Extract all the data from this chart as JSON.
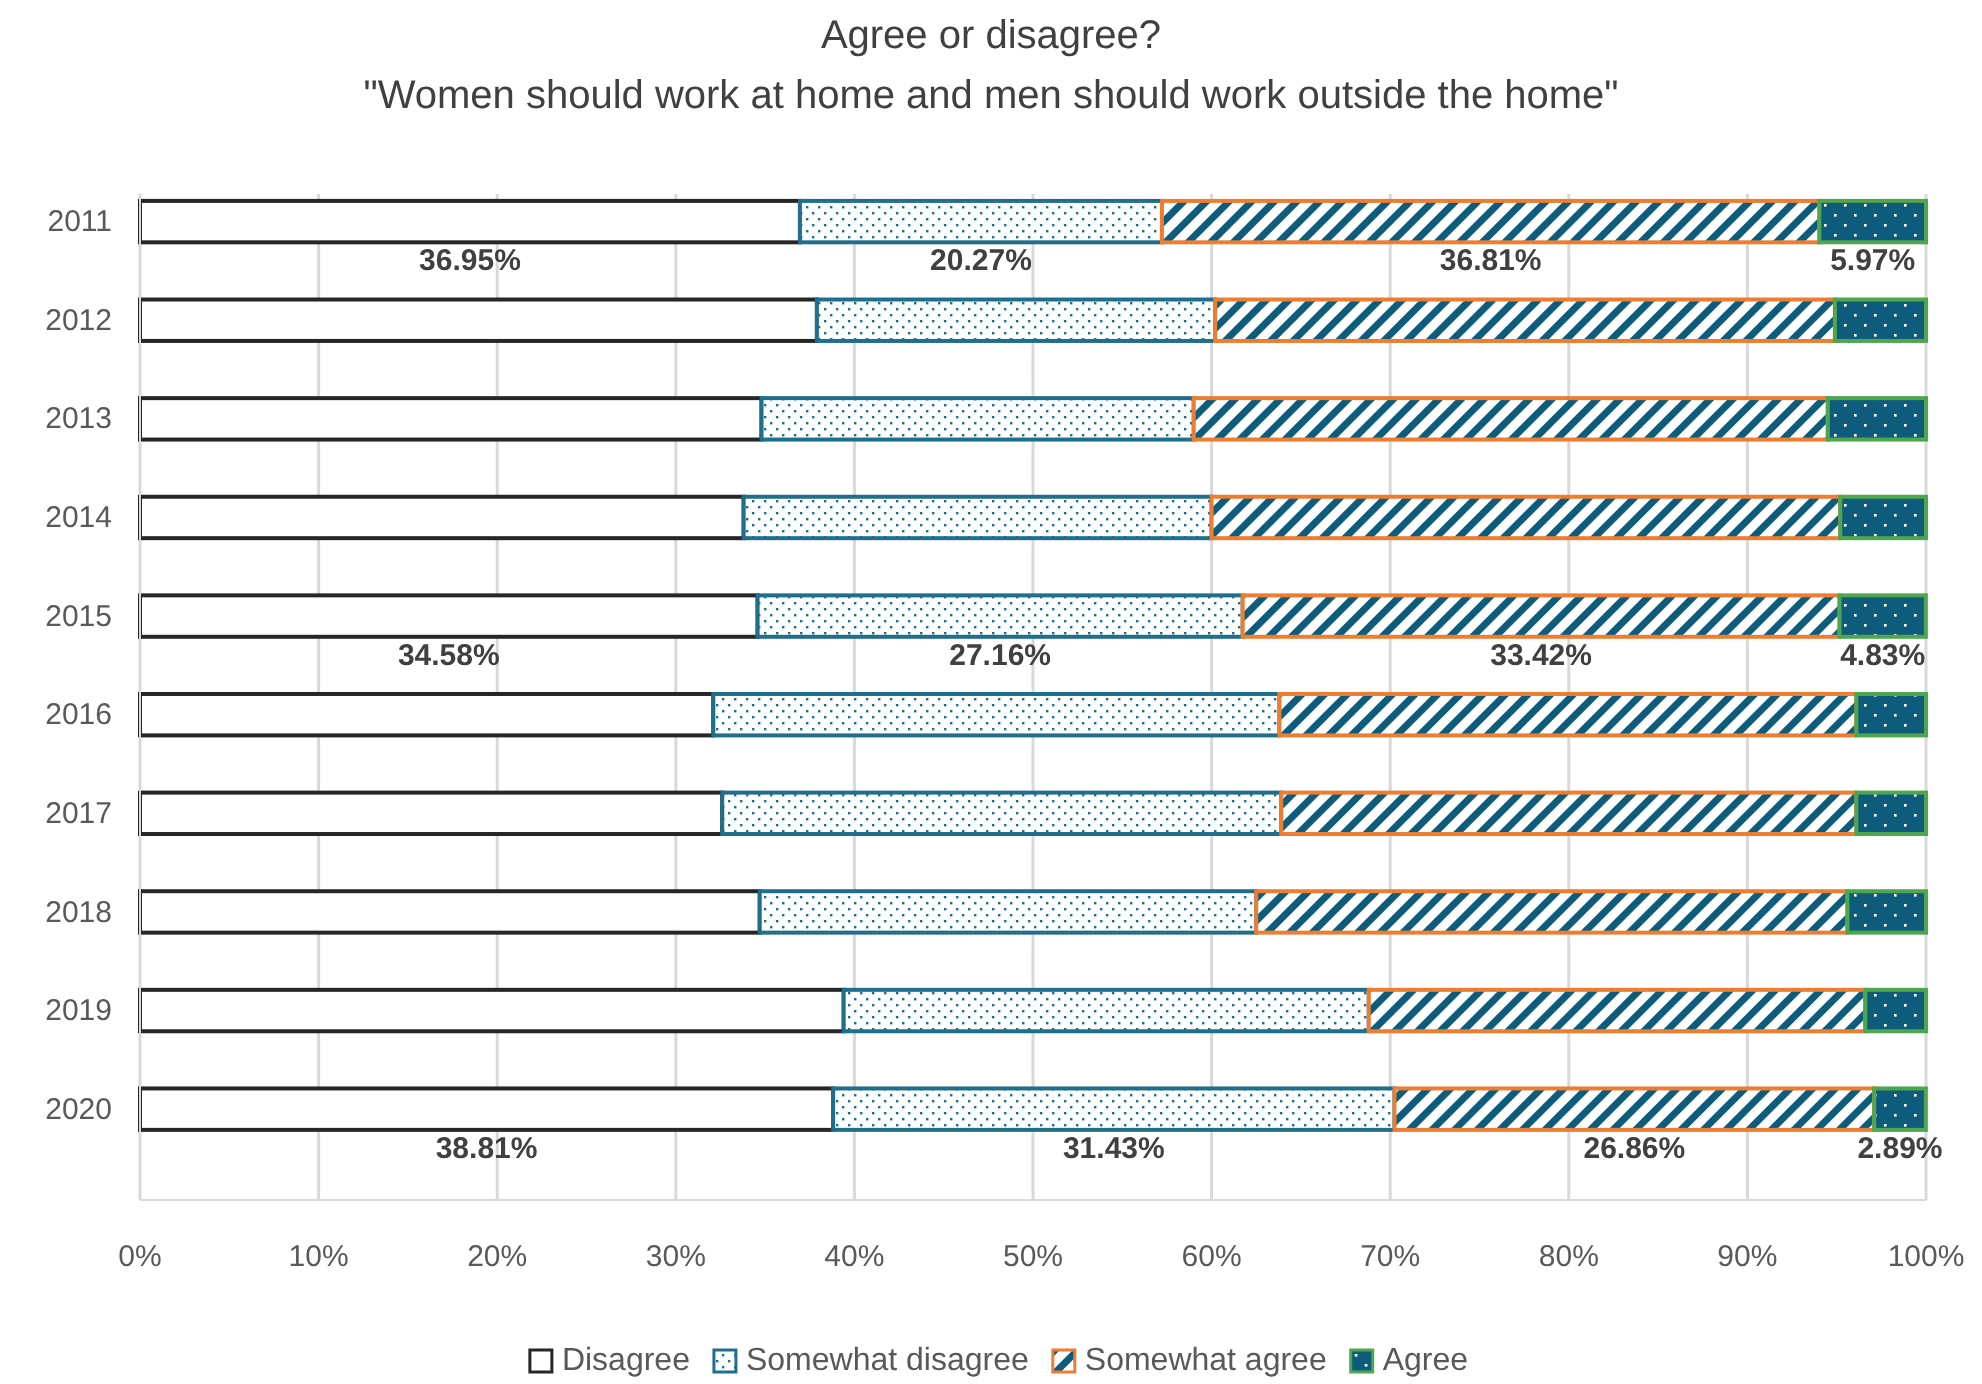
{
  "chart_data": {
    "type": "bar",
    "orientation": "horizontal",
    "stacked": true,
    "title": "Agree or disagree?\n\"Women should work at home and men should work outside the home\"",
    "categories": [
      "2011",
      "2012",
      "2013",
      "2014",
      "2015",
      "2016",
      "2017",
      "2018",
      "2019",
      "2020"
    ],
    "series": [
      {
        "name": "Disagree",
        "color": "#262626",
        "values": [
          36.95,
          37.9,
          34.8,
          33.8,
          34.58,
          32.1,
          32.6,
          34.7,
          39.4,
          38.81
        ],
        "value_labels": [
          "36.95%",
          null,
          null,
          null,
          "34.58%",
          null,
          null,
          null,
          null,
          "38.81%"
        ]
      },
      {
        "name": "Somewhat disagree",
        "color": "#1f6e8c",
        "values": [
          20.27,
          22.3,
          24.2,
          26.2,
          27.16,
          31.7,
          31.3,
          27.8,
          29.4,
          31.43
        ],
        "value_labels": [
          "20.27%",
          null,
          null,
          null,
          "27.16%",
          null,
          null,
          null,
          null,
          "31.43%"
        ]
      },
      {
        "name": "Somewhat agree",
        "color": "#ed7d31",
        "values": [
          36.81,
          34.7,
          35.5,
          35.2,
          33.42,
          32.3,
          32.2,
          33.1,
          27.8,
          26.86
        ],
        "value_labels": [
          "36.81%",
          null,
          null,
          null,
          "33.42%",
          null,
          null,
          null,
          null,
          "26.86%"
        ]
      },
      {
        "name": "Agree",
        "color": "#4ea64e",
        "values": [
          5.97,
          5.1,
          5.5,
          4.8,
          4.83,
          3.9,
          3.9,
          4.4,
          3.4,
          2.89
        ],
        "value_labels": [
          "5.97%",
          null,
          null,
          null,
          "4.83%",
          null,
          null,
          null,
          null,
          "2.89%"
        ]
      }
    ],
    "xlim": [
      0,
      100
    ],
    "xticks": [
      {
        "value": 0,
        "label": "0%"
      },
      {
        "value": 10,
        "label": "10%"
      },
      {
        "value": 20,
        "label": "20%"
      },
      {
        "value": 30,
        "label": "30%"
      },
      {
        "value": 40,
        "label": "40%"
      },
      {
        "value": 50,
        "label": "50%"
      },
      {
        "value": 60,
        "label": "60%"
      },
      {
        "value": 70,
        "label": "70%"
      },
      {
        "value": 80,
        "label": "80%"
      },
      {
        "value": 90,
        "label": "90%"
      },
      {
        "value": 100,
        "label": "100%"
      }
    ],
    "grid": "x",
    "legend": "bottom"
  }
}
